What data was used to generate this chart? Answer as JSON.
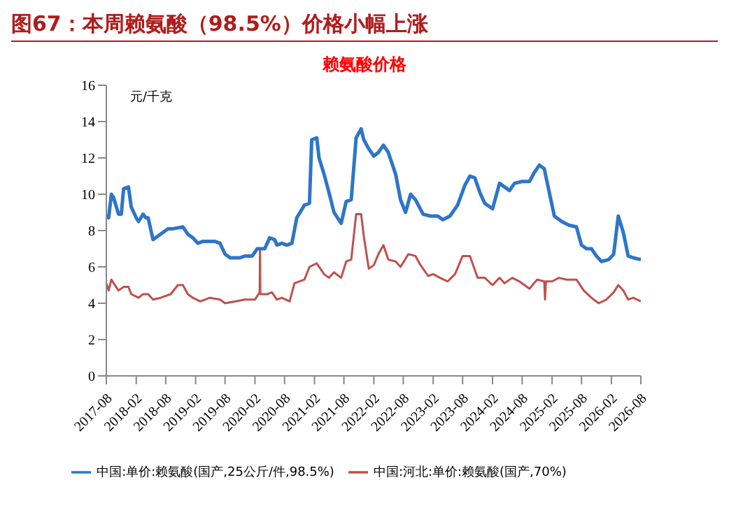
{
  "chart_data": {
    "type": "line",
    "title": "图67：本周赖氨酸（98.5%）价格小幅上涨",
    "subtitle": "赖氨酸价格",
    "ylabel": "元/千克",
    "xlim": [
      "2017-08",
      "2026-08"
    ],
    "xticks": [
      "2017-08",
      "2018-02",
      "2018-08",
      "2019-02",
      "2019-08",
      "2020-02",
      "2020-08",
      "2021-02",
      "2021-08",
      "2022-02",
      "2022-08",
      "2023-02",
      "2023-08",
      "2024-02",
      "2024-08",
      "2025-02",
      "2025-08",
      "2026-02",
      "2026-08"
    ],
    "ylim": [
      0,
      16
    ],
    "yticks": [
      0,
      2,
      4,
      6,
      8,
      10,
      12,
      14,
      16
    ],
    "grid": false,
    "legend": "bottom",
    "marker": "none",
    "line_style": "solid",
    "series": [
      {
        "name": "中国:单价:赖氨酸(国产,25公斤/件,98.5%)",
        "color": "#2e75c8",
        "x": [
          "2017-08-01",
          "2017-08-15",
          "2017-09-01",
          "2017-09-15",
          "2017-10-15",
          "2017-11-01",
          "2017-11-15",
          "2017-12-15",
          "2018-01-01",
          "2018-02-01",
          "2018-02-15",
          "2018-03-15",
          "2018-04-01",
          "2018-04-15",
          "2018-05-15",
          "2018-06-15",
          "2018-08-15",
          "2018-09-15",
          "2018-11-15",
          "2018-12-15",
          "2019-01-15",
          "2019-02-15",
          "2019-03-15",
          "2019-06-01",
          "2019-07-01",
          "2019-08-01",
          "2019-09-01",
          "2019-11-01",
          "2019-12-01",
          "2020-01-15",
          "2020-02-15",
          "2020-04-01",
          "2020-05-01",
          "2020-06-01",
          "2020-06-15",
          "2020-07-15",
          "2020-08-15",
          "2020-09-15",
          "2020-10-15",
          "2020-12-01",
          "2021-01-01",
          "2021-01-15",
          "2021-02-15",
          "2021-03-01",
          "2021-04-01",
          "2021-05-01",
          "2021-06-01",
          "2021-07-15",
          "2021-08-15",
          "2021-09-15",
          "2021-10-15",
          "2021-11-15",
          "2021-12-01",
          "2022-01-01",
          "2022-02-01",
          "2022-03-01",
          "2022-04-01",
          "2022-05-01",
          "2022-06-15",
          "2022-07-15",
          "2022-08-15",
          "2022-09-15",
          "2022-10-15",
          "2022-12-01",
          "2023-01-15",
          "2023-03-01",
          "2023-04-01",
          "2023-05-15",
          "2023-07-01",
          "2023-08-15",
          "2023-09-15",
          "2023-10-15",
          "2023-11-15",
          "2023-12-15",
          "2024-02-01",
          "2024-03-15",
          "2024-04-15",
          "2024-05-15",
          "2024-06-15",
          "2024-08-01",
          "2024-09-15",
          "2024-10-15",
          "2024-11-15",
          "2024-12-15",
          "2025-01-15",
          "2025-02-15",
          "2025-04-01",
          "2025-05-15",
          "2025-07-01",
          "2025-08-01",
          "2025-09-01",
          "2025-10-01",
          "2025-11-01",
          "2025-12-01",
          "2026-01-15",
          "2026-02-15",
          "2026-03-15",
          "2026-04-15",
          "2026-05-15",
          "2026-06-15",
          "2026-08-01"
        ],
        "values": [
          8.8,
          8.7,
          10.0,
          9.8,
          8.9,
          8.9,
          10.3,
          10.4,
          9.3,
          8.7,
          8.5,
          8.9,
          8.7,
          8.7,
          7.5,
          7.7,
          8.1,
          8.1,
          8.2,
          7.8,
          7.6,
          7.3,
          7.4,
          7.4,
          7.3,
          6.7,
          6.5,
          6.5,
          6.6,
          6.6,
          7.0,
          7.0,
          7.6,
          7.5,
          7.2,
          7.3,
          7.2,
          7.3,
          8.7,
          9.4,
          9.5,
          13.0,
          13.1,
          12.0,
          11.1,
          10.1,
          9.0,
          8.4,
          9.6,
          9.7,
          13.1,
          13.6,
          13.0,
          12.5,
          12.1,
          12.3,
          12.7,
          12.3,
          11.1,
          9.7,
          9.0,
          10.0,
          9.7,
          8.9,
          8.8,
          8.8,
          8.6,
          8.8,
          9.4,
          10.5,
          11.0,
          10.9,
          10.1,
          9.5,
          9.2,
          10.6,
          10.4,
          10.2,
          10.6,
          10.7,
          10.7,
          11.2,
          11.6,
          11.4,
          10.1,
          8.8,
          8.5,
          8.3,
          8.2,
          7.2,
          7.0,
          7.0,
          6.6,
          6.3,
          6.4,
          6.7,
          8.8,
          7.9,
          6.6,
          6.5,
          6.4
        ]
      },
      {
        "name": "中国:河北:单价:赖氨酸(国产,70%)",
        "color": "#c0504d",
        "x": [
          "2017-08-01",
          "2017-08-15",
          "2017-09-01",
          "2017-09-15",
          "2017-10-15",
          "2017-11-15",
          "2017-12-15",
          "2018-01-01",
          "2018-02-15",
          "2018-03-15",
          "2018-04-15",
          "2018-05-15",
          "2018-07-01",
          "2018-09-01",
          "2018-10-15",
          "2018-11-15",
          "2018-12-15",
          "2019-01-15",
          "2019-03-01",
          "2019-05-01",
          "2019-07-01",
          "2019-08-01",
          "2019-10-01",
          "2019-12-01",
          "2020-02-01",
          "2020-03-01",
          "2020-03-03",
          "2020-03-05",
          "2020-04-15",
          "2020-05-15",
          "2020-06-15",
          "2020-07-15",
          "2020-09-01",
          "2020-10-01",
          "2020-12-01",
          "2021-01-01",
          "2021-02-15",
          "2021-04-01",
          "2021-05-01",
          "2021-06-01",
          "2021-07-15",
          "2021-08-15",
          "2021-09-15",
          "2021-10-15",
          "2021-11-15",
          "2021-12-01",
          "2022-01-01",
          "2022-02-01",
          "2022-03-01",
          "2022-04-01",
          "2022-05-01",
          "2022-06-15",
          "2022-07-15",
          "2022-09-01",
          "2022-10-15",
          "2022-11-15",
          "2023-01-01",
          "2023-02-01",
          "2023-03-15",
          "2023-05-01",
          "2023-06-15",
          "2023-08-01",
          "2023-09-15",
          "2023-11-01",
          "2023-12-15",
          "2024-02-01",
          "2024-03-15",
          "2024-04-15",
          "2024-06-01",
          "2024-07-15",
          "2024-09-15",
          "2024-11-01",
          "2024-12-15",
          "2024-12-20",
          "2024-12-25",
          "2025-02-01",
          "2025-03-15",
          "2025-05-01",
          "2025-07-01",
          "2025-08-15",
          "2025-10-01",
          "2025-11-15",
          "2026-01-01",
          "2026-02-15",
          "2026-03-15",
          "2026-04-15",
          "2026-05-15",
          "2026-06-15",
          "2026-08-01"
        ],
        "values": [
          5.1,
          4.7,
          5.3,
          5.1,
          4.7,
          4.9,
          4.9,
          4.5,
          4.3,
          4.5,
          4.5,
          4.2,
          4.3,
          4.5,
          5.0,
          5.0,
          4.5,
          4.3,
          4.1,
          4.3,
          4.2,
          4.0,
          4.1,
          4.2,
          4.2,
          4.6,
          6.9,
          4.5,
          4.5,
          4.6,
          4.2,
          4.3,
          4.1,
          5.1,
          5.3,
          6.0,
          6.2,
          5.6,
          5.4,
          5.7,
          5.4,
          6.3,
          6.4,
          8.9,
          8.9,
          7.7,
          5.9,
          6.1,
          6.7,
          7.2,
          6.4,
          6.3,
          6.0,
          6.7,
          6.6,
          6.1,
          5.5,
          5.6,
          5.4,
          5.2,
          5.6,
          6.6,
          6.6,
          5.4,
          5.4,
          5.0,
          5.4,
          5.1,
          5.4,
          5.2,
          4.8,
          5.3,
          5.2,
          4.2,
          5.2,
          5.2,
          5.4,
          5.3,
          5.3,
          4.7,
          4.3,
          4.0,
          4.2,
          4.6,
          5.0,
          4.7,
          4.2,
          4.3,
          4.1
        ]
      }
    ]
  }
}
